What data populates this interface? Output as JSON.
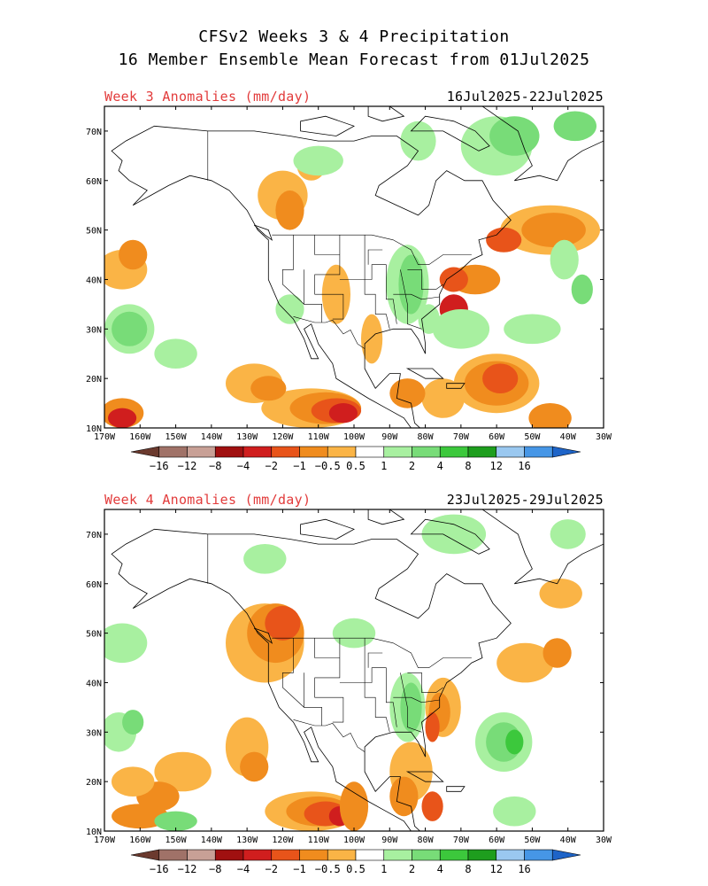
{
  "header": {
    "title_line1": "CFSv2 Weeks 3 & 4 Precipitation",
    "title_line2": "16 Member Ensemble Mean Forecast from 01Jul2025"
  },
  "panels": [
    {
      "label": "Week 3 Anomalies (mm/day)",
      "dates": "16Jul2025-22Jul2025"
    },
    {
      "label": "Week 4 Anomalies (mm/day)",
      "dates": "23Jul2025-29Jul2025"
    }
  ],
  "axes": {
    "lon_labels": [
      "170W",
      "160W",
      "150W",
      "140W",
      "130W",
      "120W",
      "110W",
      "100W",
      "90W",
      "80W",
      "70W",
      "60W",
      "50W",
      "40W",
      "30W"
    ],
    "lat_labels": [
      "10N",
      "20N",
      "30N",
      "40N",
      "50N",
      "60N",
      "70N"
    ]
  },
  "colorbar": {
    "labels": [
      "−16",
      "−12",
      "−8",
      "−4",
      "−2",
      "−1",
      "−0.5",
      "0.5",
      "1",
      "2",
      "4",
      "8",
      "12",
      "16"
    ],
    "colors": [
      "#6b3a2e",
      "#a07268",
      "#c8a096",
      "#a01010",
      "#d01e1e",
      "#e8541a",
      "#f08c1e",
      "#fab446",
      "#ffffff",
      "#a8f0a0",
      "#78dc78",
      "#3cc83c",
      "#1e9e1e",
      "#9ac8f0",
      "#4696e6",
      "#1e64c8"
    ]
  },
  "anomaly_palette": {
    "dry_light": "#fab446",
    "dry_med": "#f08c1e",
    "dry_strong": "#e8541a",
    "dry_very": "#d01e1e",
    "dry_extreme": "#a01010",
    "wet_light": "#a8f0a0",
    "wet_med": "#78dc78",
    "wet_strong": "#3cc83c",
    "wet_very": "#1e9e1e"
  }
}
